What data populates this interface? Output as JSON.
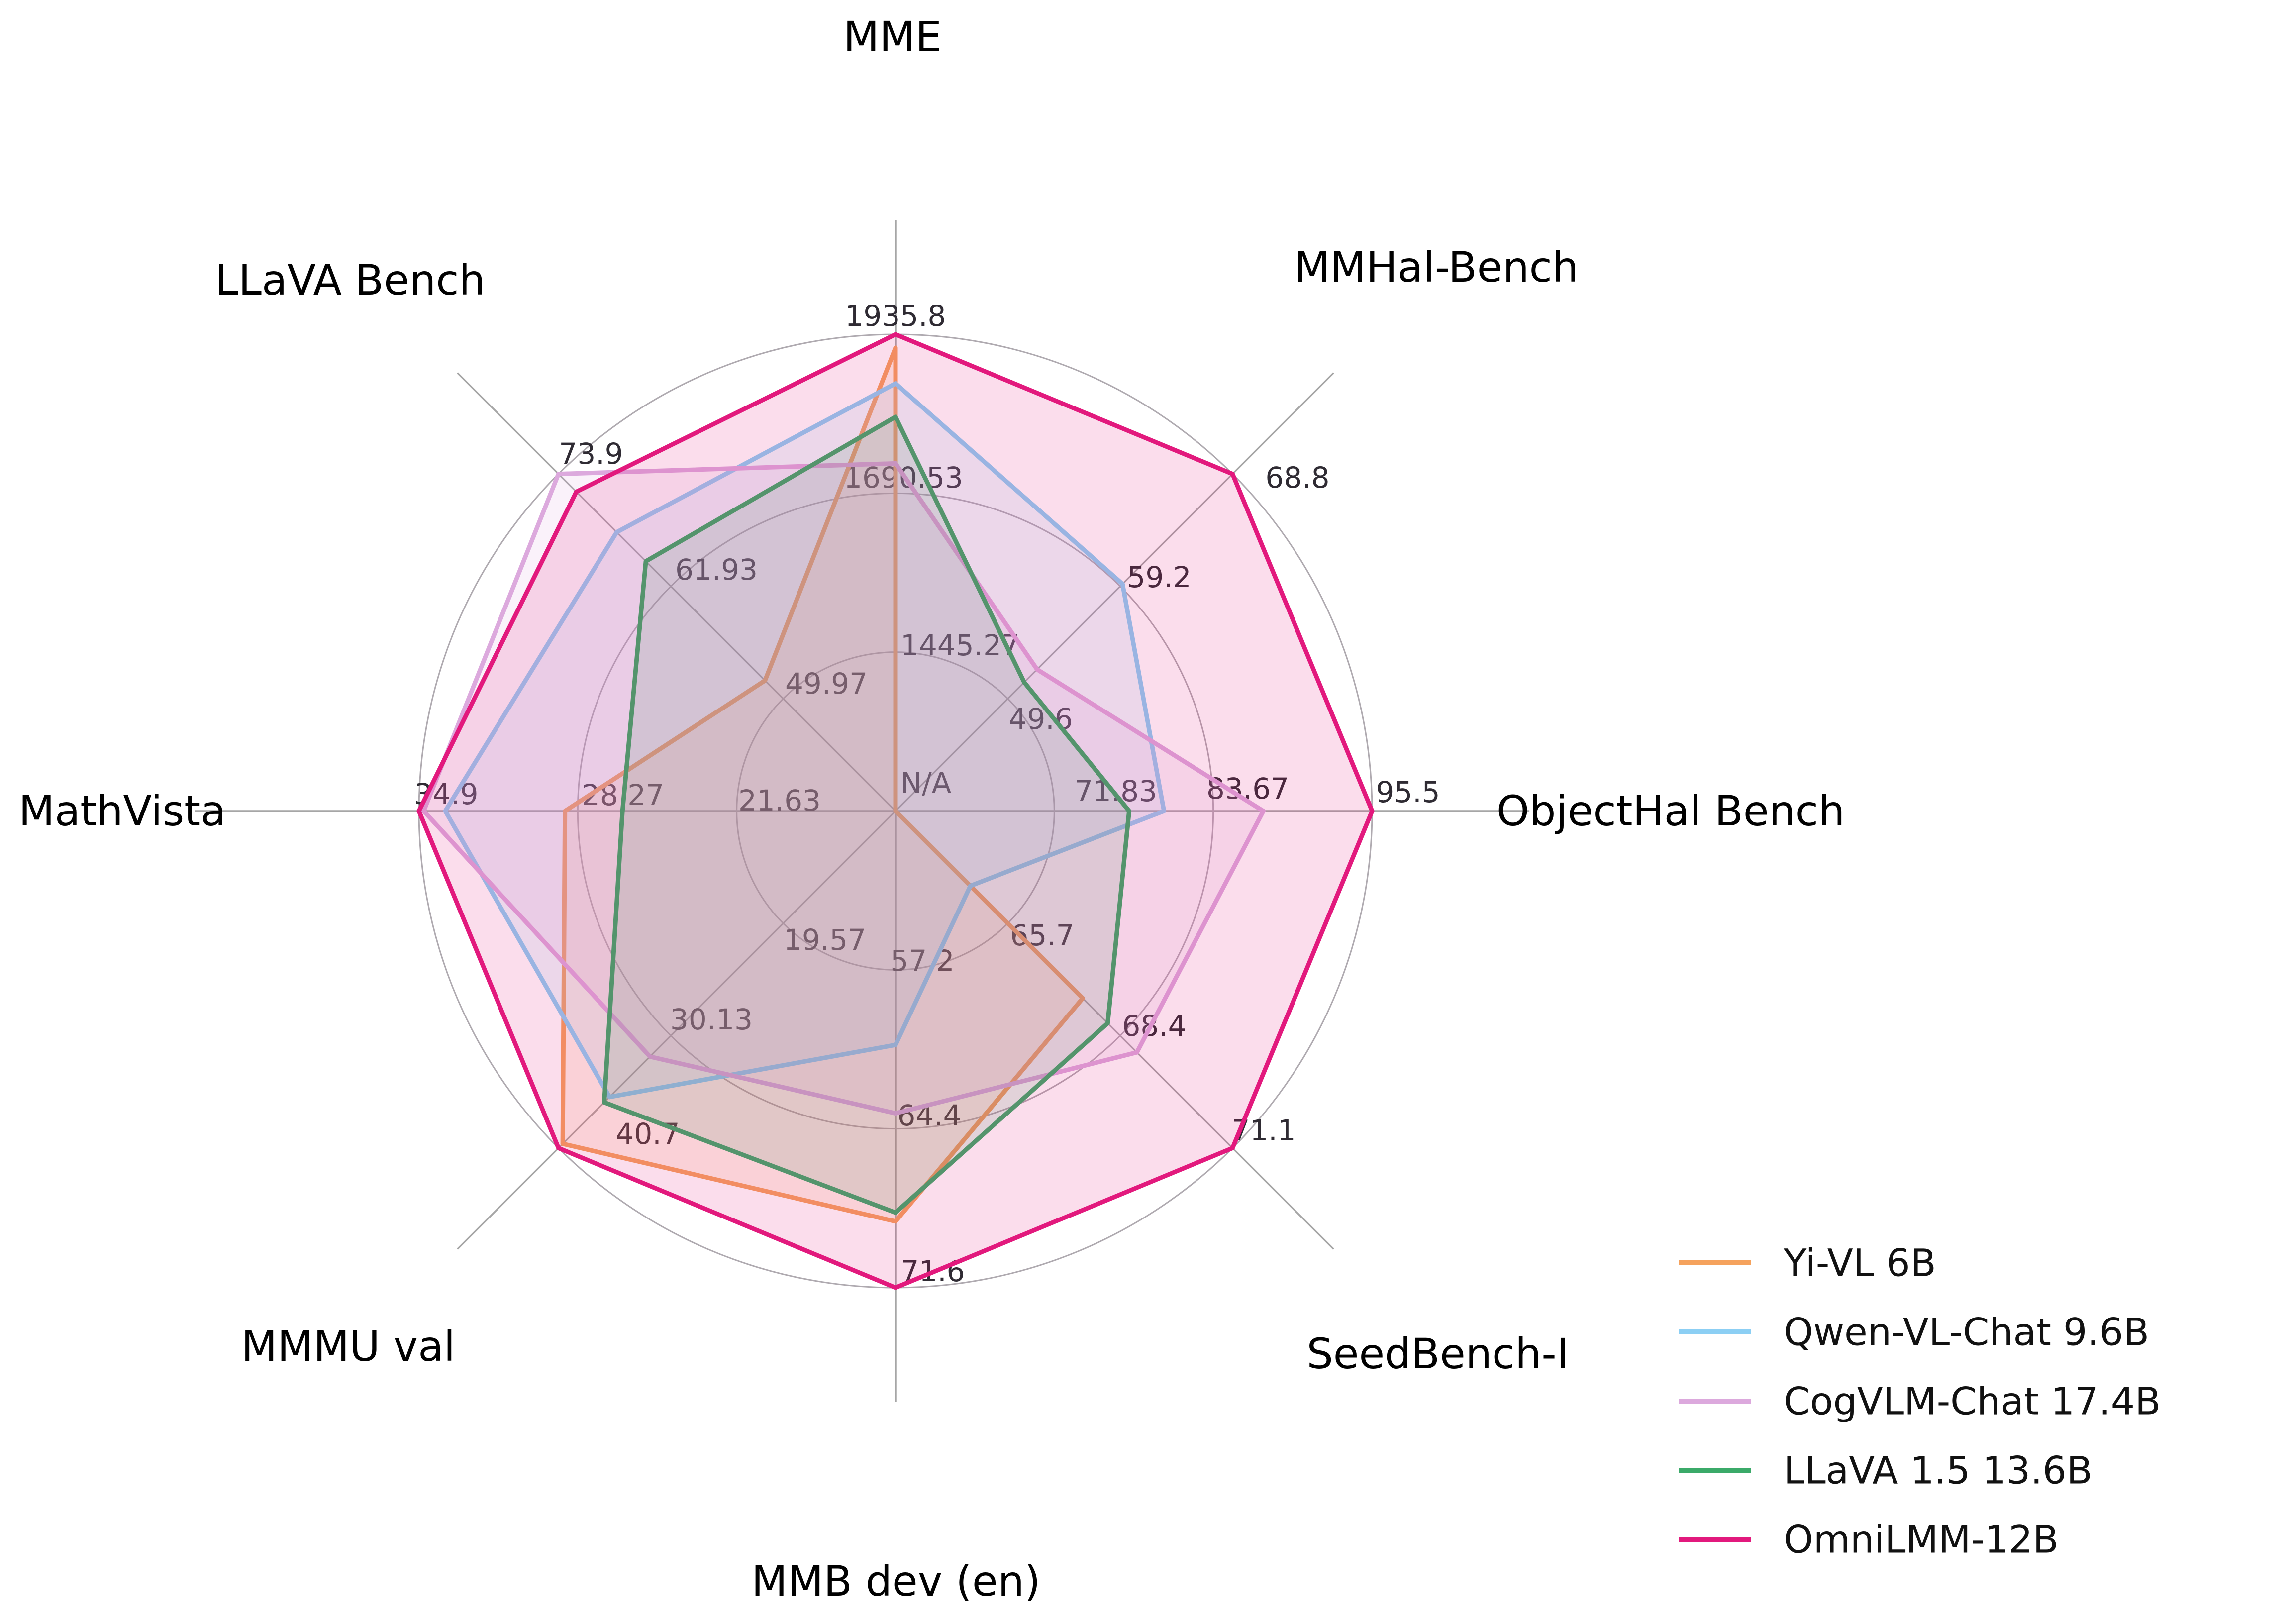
{
  "chart_data": {
    "type": "radar",
    "description": "Radar chart comparing multimodal LLM benchmark results",
    "rings": 3,
    "grid": true,
    "center_label": "N/A",
    "legend_position": "lower right",
    "axes": [
      {
        "label": "MME",
        "ticks": [
          "1445.27",
          "1690.53",
          "1935.8"
        ],
        "min": 1200.01,
        "max": 1935.8
      },
      {
        "label": "MMHal-Bench",
        "ticks": [
          "49.6",
          "59.2",
          "68.8"
        ],
        "min": 40.0,
        "max": 68.8
      },
      {
        "label": "ObjectHal Bench",
        "ticks": [
          "71.83",
          "83.67",
          "95.5"
        ],
        "min": 60.0,
        "max": 95.5
      },
      {
        "label": "SeedBench-I",
        "ticks": [
          "65.7",
          "68.4",
          "71.1"
        ],
        "min": 63.0,
        "max": 71.1
      },
      {
        "label": "MMB dev (en)",
        "ticks": [
          "57.2",
          "64.4",
          "71.6"
        ],
        "min": 50.0,
        "max": 71.6
      },
      {
        "label": "MMMU val",
        "ticks": [
          "19.57",
          "30.13",
          "40.7"
        ],
        "min": 9.0,
        "max": 40.7
      },
      {
        "label": "MathVista",
        "ticks": [
          "21.63",
          "28.27",
          "34.9"
        ],
        "min": 15.0,
        "max": 34.9
      },
      {
        "label": "LLaVA Bench",
        "ticks": [
          "49.97",
          "61.93",
          "73.9"
        ],
        "min": 38.0,
        "max": 73.9
      }
    ],
    "series": [
      {
        "name": "Yi-VL 6B",
        "color": "#F5A25D",
        "values": [
          1915.1,
          "N/A",
          "N/A",
          67.5,
          68.6,
          40.3,
          28.8,
          51.9
        ]
      },
      {
        "name": "Qwen-VL-Chat 9.6B",
        "color": "#8CCFF4",
        "values": [
          1860.0,
          59.4,
          80.0,
          64.8,
          60.6,
          35.9,
          33.8,
          67.7
        ]
      },
      {
        "name": "CogVLM-Chat 17.4B",
        "color": "#DCA9DD",
        "values": [
          1736.6,
          52.1,
          87.4,
          68.8,
          63.7,
          32.1,
          34.7,
          73.9
        ]
      },
      {
        "name": "LLaVA 1.5 13.6B",
        "color": "#3BAA69",
        "values": [
          1808.4,
          51.0,
          77.4,
          68.1,
          68.2,
          36.4,
          26.4,
          64.6
        ]
      },
      {
        "name": "OmniLMM-12B",
        "color": "#E2197D",
        "values": [
          1935.8,
          68.8,
          95.5,
          71.1,
          71.6,
          40.7,
          34.9,
          72.0
        ]
      }
    ]
  }
}
